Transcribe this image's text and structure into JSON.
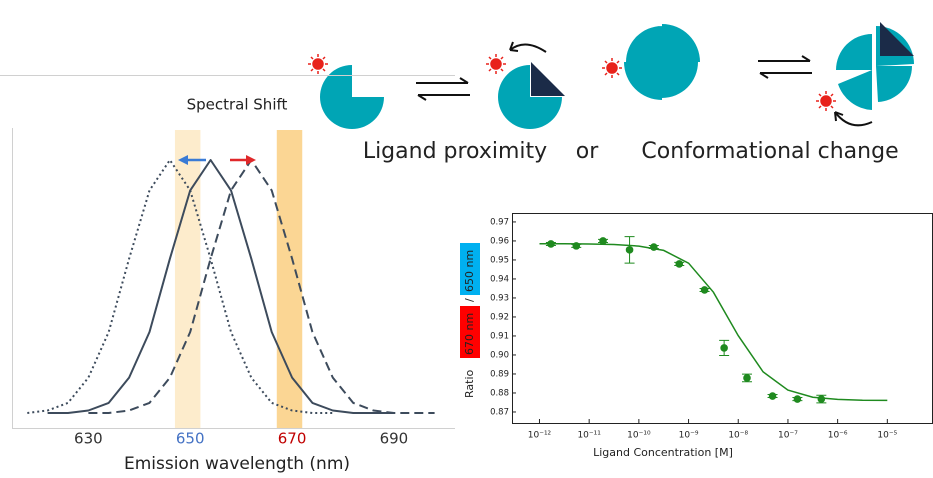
{
  "diagram": {
    "labels": [
      "Ligand proximity",
      "or",
      "Conformational change"
    ]
  },
  "chart_data": [
    {
      "type": "line",
      "title": "Spectral Shift",
      "x_label": "Emission wavelength (nm)",
      "x": [
        618,
        622,
        626,
        630,
        634,
        638,
        642,
        646,
        650,
        654,
        658,
        662,
        666,
        670,
        674,
        678,
        682,
        686,
        690,
        694,
        698
      ],
      "xlim": [
        615,
        702
      ],
      "xticks": [
        630,
        650,
        670,
        690
      ],
      "xtick_colors": [
        "#333333",
        "#4472c4",
        "#c00000",
        "#333333"
      ],
      "ylim": [
        0,
        1
      ],
      "bands": [
        {
          "from": 647,
          "to": 652,
          "color": "#fdeccc"
        },
        {
          "from": 667,
          "to": 672,
          "color": "#fbd694"
        }
      ],
      "series": [
        {
          "style": "dotted",
          "color": "#3d4b5c",
          "values": [
            0,
            0.01,
            0.04,
            0.14,
            0.32,
            0.61,
            0.88,
            1,
            0.88,
            0.61,
            0.32,
            0.14,
            0.04,
            0.01,
            0,
            0,
            null,
            null,
            null,
            null,
            null
          ]
        },
        {
          "style": "solid",
          "color": "#3d4b5c",
          "values": [
            null,
            0,
            0,
            0.01,
            0.04,
            0.14,
            0.32,
            0.61,
            0.88,
            1,
            0.88,
            0.61,
            0.32,
            0.14,
            0.04,
            0.01,
            0,
            0,
            0,
            null,
            null
          ]
        },
        {
          "style": "dashed",
          "color": "#3d4b5c",
          "values": [
            null,
            null,
            null,
            0,
            0,
            0.01,
            0.04,
            0.14,
            0.32,
            0.61,
            0.88,
            1,
            0.88,
            0.61,
            0.32,
            0.14,
            0.04,
            0.01,
            0,
            0,
            0
          ]
        }
      ]
    },
    {
      "type": "scatter",
      "x_label": "Ligand Concentration [M]",
      "y_label": [
        {
          "text": "Ratio"
        },
        {
          "text": "670 nm",
          "color": "#ff0000"
        },
        {
          "text": "/"
        },
        {
          "text": "650 nm",
          "color": "#00b0f0"
        }
      ],
      "log_x": true,
      "xlim": [
        2.8e-13,
        8.3e-05
      ],
      "xticks": [
        {
          "value": 1e-12,
          "label": "10⁻¹²"
        },
        {
          "value": 1e-11,
          "label": "10⁻¹¹"
        },
        {
          "value": 1e-10,
          "label": "10⁻¹⁰"
        },
        {
          "value": 1e-09,
          "label": "10⁻⁹"
        },
        {
          "value": 1e-08,
          "label": "10⁻⁸"
        },
        {
          "value": 1e-07,
          "label": "10⁻⁷"
        },
        {
          "value": 1e-06,
          "label": "10⁻⁶"
        },
        {
          "value": 1e-05,
          "label": "10⁻⁵"
        }
      ],
      "ylim": [
        0.8642,
        0.9747
      ],
      "yticks": [
        0.87,
        0.88,
        0.89,
        {
          "value": 0.9,
          "label": "0.90"
        },
        0.91,
        0.92,
        0.93,
        0.94,
        0.95,
        0.96,
        0.97
      ],
      "color": "#1f8a1f",
      "x": [
        1.7e-12,
        5.5e-12,
        1.9e-11,
        6.5e-11,
        2e-10,
        6.5e-10,
        2.1e-09,
        5.2e-09,
        1.5e-08,
        4.9e-08,
        1.55e-07,
        4.7e-07
      ],
      "values": [
        0.9584,
        0.9574,
        0.96,
        0.9553,
        0.9568,
        0.9479,
        0.9342,
        0.9037,
        0.8879,
        0.8784,
        0.8768,
        0.8768
      ],
      "errors": [
        0.0008,
        0.0008,
        0.0008,
        0.007,
        0.0008,
        0.0008,
        0.0008,
        0.004,
        0.002,
        0.0008,
        0.0008,
        0.002
      ],
      "fit": {
        "x": [
          1e-12,
          3.162e-12,
          1e-11,
          3.162e-11,
          1e-10,
          3.162e-10,
          1e-09,
          3.162e-09,
          1e-08,
          3.162e-08,
          1e-07,
          3.162e-07,
          1e-06,
          3.162e-06,
          1e-05
        ],
        "values": [
          0.9585,
          0.9585,
          0.9584,
          0.9581,
          0.9573,
          0.955,
          0.9483,
          0.933,
          0.9102,
          0.8911,
          0.8815,
          0.8778,
          0.8766,
          0.8762,
          0.8761
        ]
      }
    }
  ]
}
